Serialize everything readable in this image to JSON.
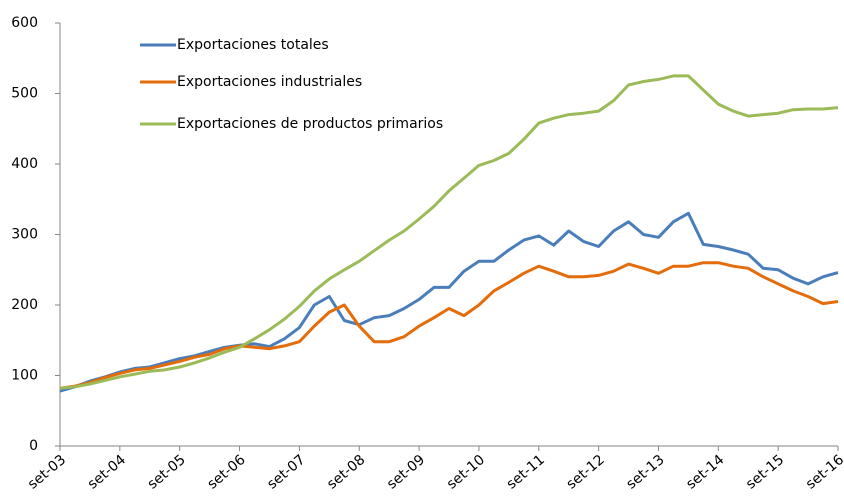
{
  "chart_data": {
    "type": "line",
    "categories": [
      "set-03",
      null,
      null,
      null,
      "set-04",
      null,
      null,
      null,
      "set-05",
      null,
      null,
      null,
      "set-06",
      null,
      null,
      null,
      "set-07",
      null,
      null,
      null,
      "set-08",
      null,
      null,
      null,
      "set-09",
      null,
      null,
      null,
      "set-10",
      null,
      null,
      null,
      "set-11",
      null,
      null,
      null,
      "set-12",
      null,
      null,
      null,
      "set-13",
      null,
      null,
      null,
      "set-14",
      null,
      null,
      null,
      "set-15",
      null,
      null,
      null,
      "set-16"
    ],
    "series": [
      {
        "name": "Exportaciones totales",
        "color": "#4a7ebb",
        "values": [
          78,
          84,
          92,
          98,
          105,
          110,
          112,
          118,
          124,
          128,
          134,
          140,
          143,
          145,
          141,
          152,
          168,
          200,
          212,
          178,
          172,
          182,
          185,
          195,
          208,
          225,
          225,
          248,
          262,
          262,
          278,
          292,
          298,
          285,
          305,
          290,
          283,
          305,
          318,
          300,
          296,
          318,
          330,
          286,
          283,
          278,
          272,
          252,
          250,
          238,
          230,
          240,
          246
        ]
      },
      {
        "name": "Exportaciones industriales",
        "color": "#e46c0a",
        "values": [
          82,
          85,
          90,
          97,
          103,
          108,
          110,
          115,
          120,
          126,
          130,
          138,
          142,
          140,
          138,
          142,
          148,
          170,
          190,
          200,
          170,
          148,
          148,
          155,
          170,
          182,
          195,
          185,
          200,
          220,
          232,
          245,
          255,
          248,
          240,
          240,
          242,
          248,
          258,
          252,
          245,
          255,
          255,
          260,
          260,
          255,
          252,
          240,
          230,
          220,
          212,
          202,
          205
        ]
      },
      {
        "name": "Exportaciones de productos primarios",
        "color": "#9bbb59",
        "values": [
          82,
          84,
          88,
          93,
          98,
          102,
          106,
          108,
          112,
          118,
          125,
          133,
          140,
          152,
          165,
          180,
          198,
          220,
          237,
          250,
          262,
          277,
          292,
          305,
          322,
          340,
          362,
          380,
          398,
          405,
          415,
          435,
          458,
          465,
          470,
          472,
          475,
          490,
          512,
          517,
          520,
          525,
          525,
          505,
          485,
          475,
          468,
          470,
          472,
          477,
          478,
          478,
          480
        ]
      }
    ],
    "ylim": [
      0,
      600
    ],
    "yticks": [
      0,
      100,
      200,
      300,
      400,
      500,
      600
    ],
    "grid": false,
    "legend": "top-left"
  }
}
